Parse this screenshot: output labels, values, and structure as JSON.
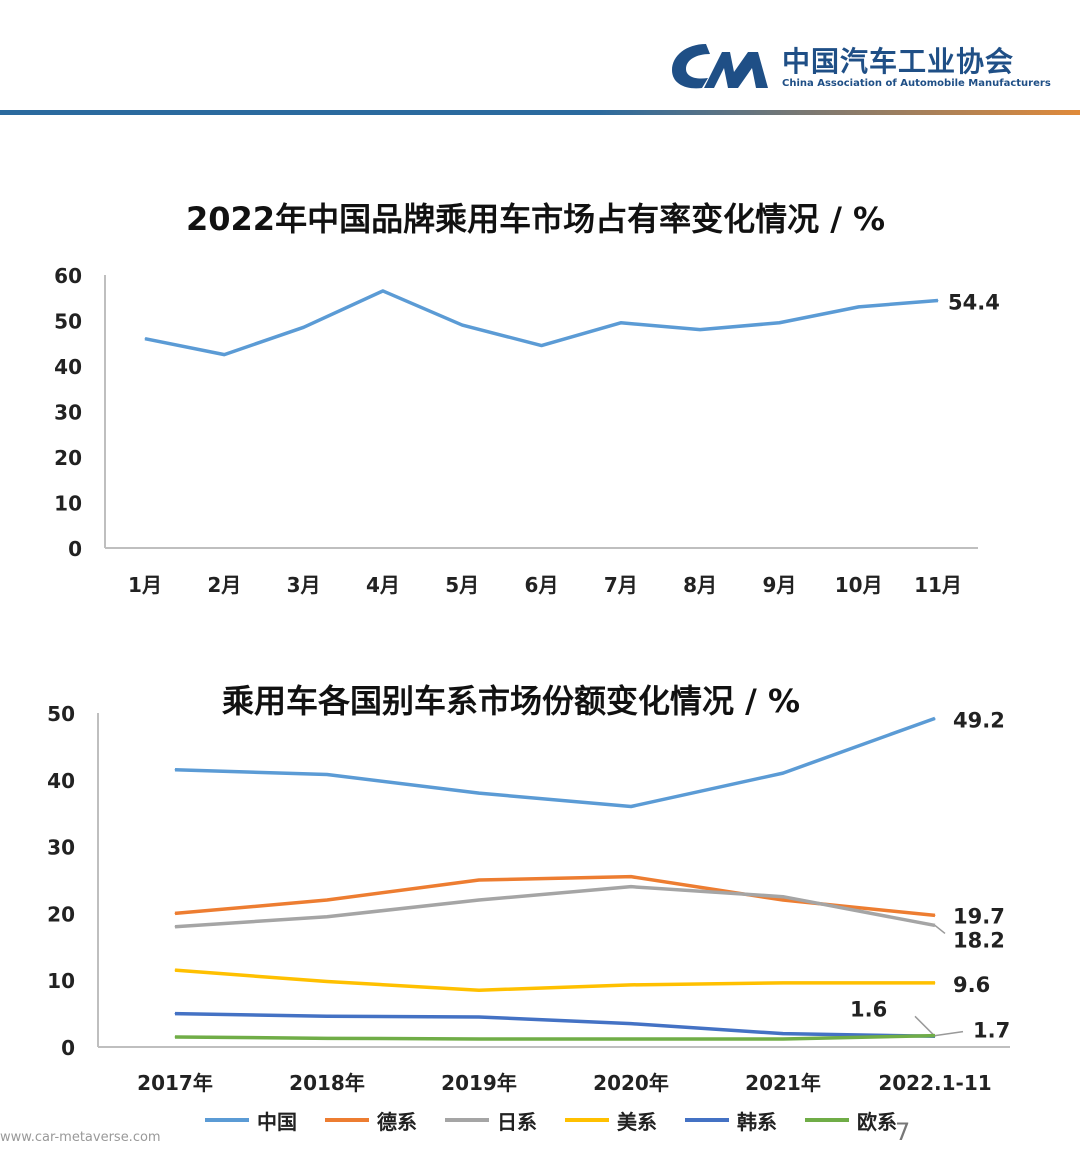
{
  "header": {
    "org_name": "中国汽车工业协会",
    "org_sub": "China Association of Automobile Manufacturers"
  },
  "colors": {
    "brand": "#1f4f86",
    "china": "#5b9bd5",
    "germany": "#ed7d31",
    "japan": "#a5a5a5",
    "usa": "#ffc000",
    "korea": "#4472c4",
    "europe": "#70ad47"
  },
  "page_number": "7",
  "watermark": "www.car-metaverse.com",
  "chart_data": [
    {
      "type": "line",
      "title": "2022年中国品牌乘用车市场占有率变化情况 / %",
      "categories": [
        "1月",
        "2月",
        "3月",
        "4月",
        "5月",
        "6月",
        "7月",
        "8月",
        "9月",
        "10月",
        "11月"
      ],
      "series": [
        {
          "values": [
            46,
            42.5,
            48.5,
            56.5,
            49,
            44.5,
            49.5,
            48,
            49.5,
            53,
            54.4
          ]
        }
      ],
      "ylim": [
        0,
        60
      ],
      "yticks": [
        0,
        10,
        20,
        30,
        40,
        50,
        60
      ],
      "grid": false,
      "end_label": "54.4"
    },
    {
      "type": "line",
      "title": "乘用车各国别车系市场份额变化情况 / %",
      "categories": [
        "2017年",
        "2018年",
        "2019年",
        "2020年",
        "2021年",
        "2022.1-11"
      ],
      "series": [
        {
          "name": "中国",
          "values": [
            41.5,
            40.8,
            38,
            36,
            41,
            49.2
          ],
          "end_label": "49.2"
        },
        {
          "name": "德系",
          "values": [
            20,
            22,
            25,
            25.5,
            22,
            19.7
          ],
          "end_label": "19.7"
        },
        {
          "name": "日系",
          "values": [
            18,
            19.5,
            22,
            24,
            22.5,
            18.2
          ],
          "end_label": "18.2"
        },
        {
          "name": "美系",
          "values": [
            11.5,
            9.8,
            8.5,
            9.3,
            9.6,
            9.6
          ],
          "end_label": "9.6"
        },
        {
          "name": "韩系",
          "values": [
            5,
            4.6,
            4.5,
            3.5,
            2,
            1.6
          ],
          "end_label": "1.6"
        },
        {
          "name": "欧系",
          "values": [
            1.5,
            1.3,
            1.2,
            1.2,
            1.2,
            1.7
          ],
          "end_label": "1.7"
        }
      ],
      "ylim": [
        0,
        50
      ],
      "yticks": [
        0,
        10,
        20,
        30,
        40,
        50
      ],
      "grid": false,
      "legend": "bottom"
    }
  ]
}
